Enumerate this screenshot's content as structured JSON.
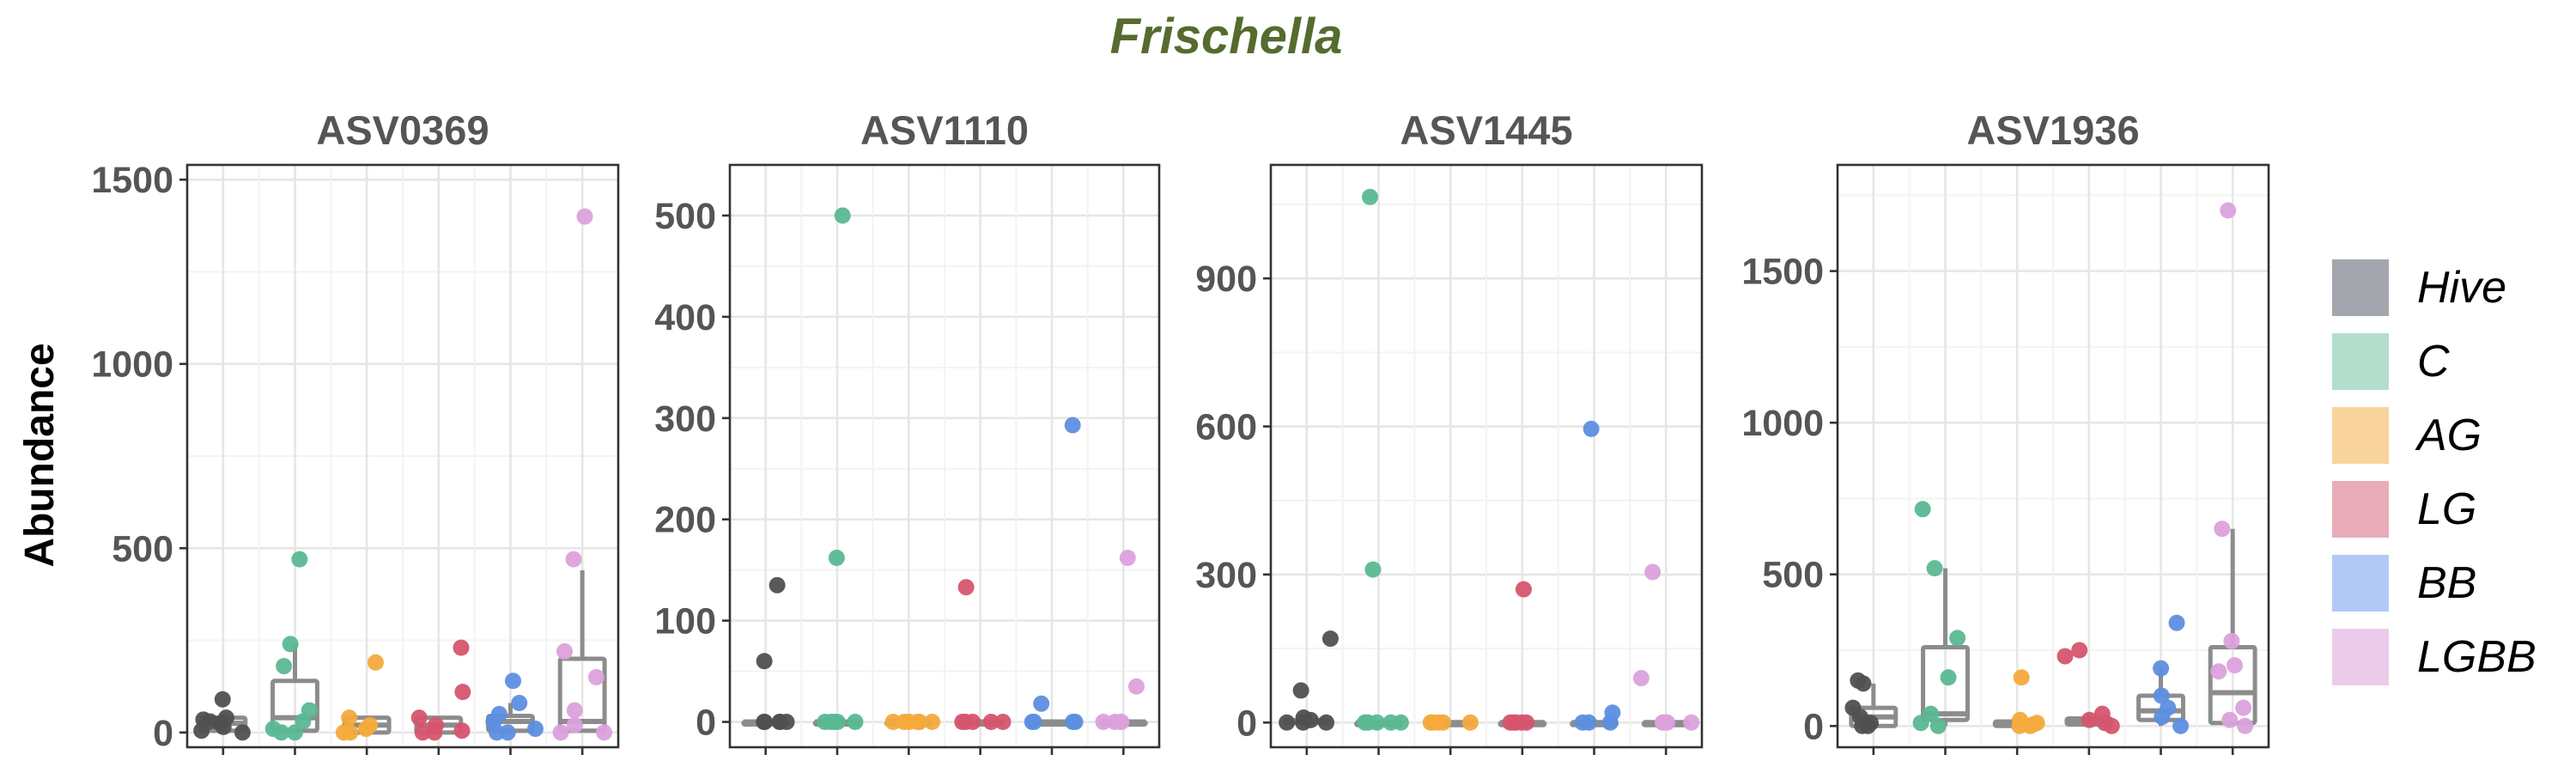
{
  "figure": {
    "title": "Frischella",
    "ylabel": "Abundance"
  },
  "colors": {
    "grid": "#ebebeb",
    "frame": "#333333",
    "box": "#8c8c8c",
    "text_title": "#556b2f",
    "text_axis": "#555555"
  },
  "chart_data": [
    {
      "type": "box",
      "title": "ASV0369",
      "ylim": [
        -40,
        1540
      ],
      "yticks": [
        0,
        500,
        1000,
        1500
      ],
      "groups": [
        "Hive",
        "C",
        "AG",
        "LG",
        "BB",
        "LGBB"
      ],
      "points": [
        [
          90,
          40,
          35,
          30,
          25,
          15,
          5,
          0
        ],
        [
          470,
          240,
          180,
          60,
          30,
          10,
          0,
          0
        ],
        [
          190,
          40,
          20,
          10,
          0,
          0
        ],
        [
          230,
          110,
          40,
          20,
          5,
          0,
          0
        ],
        [
          140,
          80,
          50,
          30,
          10,
          0,
          0
        ],
        [
          1400,
          470,
          220,
          150,
          60,
          20,
          0,
          0
        ]
      ],
      "boxes": [
        {
          "q1": 5,
          "med": 25,
          "q3": 40,
          "lo": 0,
          "hi": 50
        },
        {
          "q1": 5,
          "med": 40,
          "q3": 140,
          "lo": 0,
          "hi": 240
        },
        {
          "q1": 0,
          "med": 20,
          "q3": 40,
          "lo": 0,
          "hi": 45
        },
        {
          "q1": 0,
          "med": 20,
          "q3": 40,
          "lo": 0,
          "hi": 45
        },
        {
          "q1": 5,
          "med": 30,
          "q3": 45,
          "lo": 0,
          "hi": 80
        },
        {
          "q1": 5,
          "med": 30,
          "q3": 200,
          "lo": 0,
          "hi": 440
        }
      ]
    },
    {
      "type": "box",
      "title": "ASV1110",
      "ylim": [
        -25,
        550
      ],
      "yticks": [
        0,
        100,
        200,
        300,
        400,
        500
      ],
      "groups": [
        "Hive",
        "C",
        "AG",
        "LG",
        "BB",
        "LGBB"
      ],
      "points": [
        [
          135,
          60,
          0,
          0,
          0,
          0,
          0
        ],
        [
          500,
          162,
          0,
          0,
          0,
          0,
          0
        ],
        [
          0,
          0,
          0,
          0,
          0,
          0
        ],
        [
          133,
          0,
          0,
          0,
          0,
          0
        ],
        [
          293,
          18,
          0,
          0,
          0,
          0
        ],
        [
          162,
          35,
          0,
          0,
          0,
          0
        ]
      ],
      "boxes": [
        {
          "q1": 0,
          "med": 0,
          "q3": 0,
          "lo": 0,
          "hi": 0
        },
        {
          "q1": 0,
          "med": 0,
          "q3": 0,
          "lo": 0,
          "hi": 0
        },
        {
          "q1": 0,
          "med": 0,
          "q3": 0,
          "lo": 0,
          "hi": 0
        },
        {
          "q1": 0,
          "med": 0,
          "q3": 0,
          "lo": 0,
          "hi": 0
        },
        {
          "q1": 0,
          "med": 0,
          "q3": 0,
          "lo": 0,
          "hi": 0
        },
        {
          "q1": 0,
          "med": 0,
          "q3": 0,
          "lo": 0,
          "hi": 0
        }
      ]
    },
    {
      "type": "box",
      "title": "ASV1445",
      "ylim": [
        -50,
        1130
      ],
      "yticks": [
        0,
        300,
        600,
        900
      ],
      "groups": [
        "Hive",
        "C",
        "AG",
        "LG",
        "BB",
        "LGBB"
      ],
      "points": [
        [
          170,
          65,
          10,
          5,
          0,
          0,
          0
        ],
        [
          1065,
          310,
          0,
          0,
          0,
          0,
          0
        ],
        [
          0,
          0,
          0,
          0,
          0
        ],
        [
          270,
          0,
          0,
          0,
          0,
          0
        ],
        [
          595,
          20,
          0,
          0,
          0
        ],
        [
          305,
          90,
          0,
          0,
          0,
          0
        ]
      ],
      "boxes": [
        {
          "q1": 0,
          "med": 0,
          "q3": 5,
          "lo": 0,
          "hi": 10
        },
        {
          "q1": 0,
          "med": 0,
          "q3": 0,
          "lo": 0,
          "hi": 0
        },
        {
          "q1": 0,
          "med": 0,
          "q3": 0,
          "lo": 0,
          "hi": 0
        },
        {
          "q1": 0,
          "med": 0,
          "q3": 0,
          "lo": 0,
          "hi": 0
        },
        {
          "q1": 0,
          "med": 0,
          "q3": 0,
          "lo": 0,
          "hi": 0
        },
        {
          "q1": 0,
          "med": 0,
          "q3": 0,
          "lo": 0,
          "hi": 0
        }
      ]
    },
    {
      "type": "box",
      "title": "ASV1936",
      "ylim": [
        -70,
        1850
      ],
      "yticks": [
        0,
        500,
        1000,
        1500
      ],
      "groups": [
        "Hive",
        "C",
        "AG",
        "LG",
        "BB",
        "LGBB"
      ],
      "points": [
        [
          150,
          140,
          60,
          30,
          10,
          0,
          0
        ],
        [
          715,
          520,
          290,
          160,
          40,
          10,
          0
        ],
        [
          160,
          20,
          10,
          5,
          0,
          0
        ],
        [
          250,
          230,
          40,
          20,
          10,
          0
        ],
        [
          340,
          190,
          100,
          60,
          30,
          0
        ],
        [
          1700,
          650,
          280,
          200,
          180,
          60,
          20,
          0
        ]
      ],
      "boxes": [
        {
          "q1": 0,
          "med": 30,
          "q3": 60,
          "lo": 0,
          "hi": 140
        },
        {
          "q1": 20,
          "med": 40,
          "q3": 260,
          "lo": 0,
          "hi": 520
        },
        {
          "q1": 0,
          "med": 5,
          "q3": 15,
          "lo": 0,
          "hi": 20
        },
        {
          "q1": 5,
          "med": 15,
          "q3": 25,
          "lo": 0,
          "hi": 40
        },
        {
          "q1": 20,
          "med": 50,
          "q3": 100,
          "lo": 0,
          "hi": 190
        },
        {
          "q1": 10,
          "med": 110,
          "q3": 260,
          "lo": 0,
          "hi": 650
        }
      ]
    }
  ],
  "legend": {
    "position": "right",
    "items": [
      {
        "label": "Hive",
        "color": "#a3a6ad"
      },
      {
        "label": "C",
        "color": "#b3dece"
      },
      {
        "label": "AG",
        "color": "#f9d49d"
      },
      {
        "label": "LG",
        "color": "#e8adb9"
      },
      {
        "label": "BB",
        "color": "#b3c9f5"
      },
      {
        "label": "LGBB",
        "color": "#eccbea"
      }
    ],
    "point_colors": [
      "#505050",
      "#5ab892",
      "#f4aa3c",
      "#d5556e",
      "#5d8fe0",
      "#dca1dc"
    ]
  }
}
